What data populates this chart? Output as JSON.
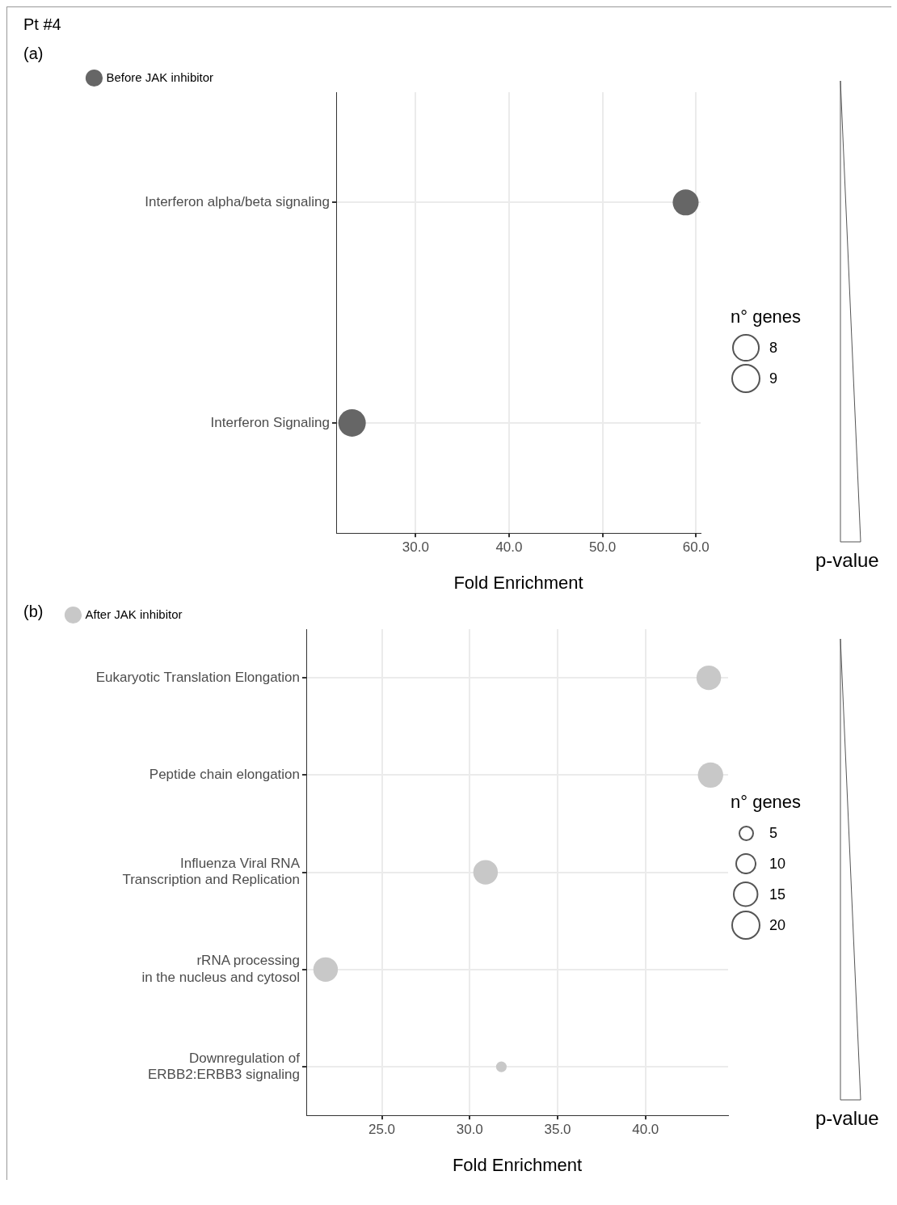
{
  "chart_data": [
    {
      "type": "bubble",
      "title": "Pt #4",
      "annotations": [
        "(a)"
      ],
      "orientation": "horizontal",
      "categories": [
        "Interferon alpha/beta signaling",
        "Interferon Signaling"
      ],
      "series": [
        {
          "name": "Before JAK inhibitor",
          "color": "#666666",
          "values": [
            58.9,
            23.2
          ],
          "sizes": [
            8,
            9
          ]
        }
      ],
      "xlim": [
        21.5,
        60.5
      ],
      "xticks": [
        {
          "value": 30,
          "label": "30.0"
        },
        {
          "value": 40,
          "label": "40.0"
        },
        {
          "value": 50,
          "label": "50.0"
        },
        {
          "value": 60,
          "label": "60.0"
        }
      ],
      "xlabel": "Fold Enrichment",
      "size_legend": [
        8,
        9
      ],
      "legend_title": "n° genes",
      "clabel": "p-value",
      "grid": true,
      "legend": "top left"
    },
    {
      "type": "bubble",
      "annotations": [
        "(b)"
      ],
      "orientation": "horizontal",
      "categories": [
        "Eukaryotic Translation Elongation",
        "Peptide chain elongation",
        "Influenza Viral RNA\nTranscription and Replication",
        "rRNA processing\nin the nucleus and cytosol",
        "Downregulation of\nERBB2:ERBB3 signaling"
      ],
      "series": [
        {
          "name": "After JAK inhibitor",
          "color": "#c8c8c8",
          "values": [
            43.6,
            43.7,
            30.9,
            21.8,
            31.8
          ],
          "sizes": [
            16,
            17,
            16,
            16,
            3
          ]
        }
      ],
      "xlim": [
        20.7,
        44.7
      ],
      "xticks": [
        {
          "value": 25,
          "label": "25.0"
        },
        {
          "value": 30,
          "label": "30.0"
        },
        {
          "value": 35,
          "label": "35.0"
        },
        {
          "value": 40,
          "label": "40.0"
        }
      ],
      "xlabel": "Fold Enrichment",
      "size_legend": [
        5,
        10,
        15,
        20
      ],
      "legend_title": "n° genes",
      "clabel": "p-value",
      "grid": true,
      "legend": "top left"
    }
  ]
}
